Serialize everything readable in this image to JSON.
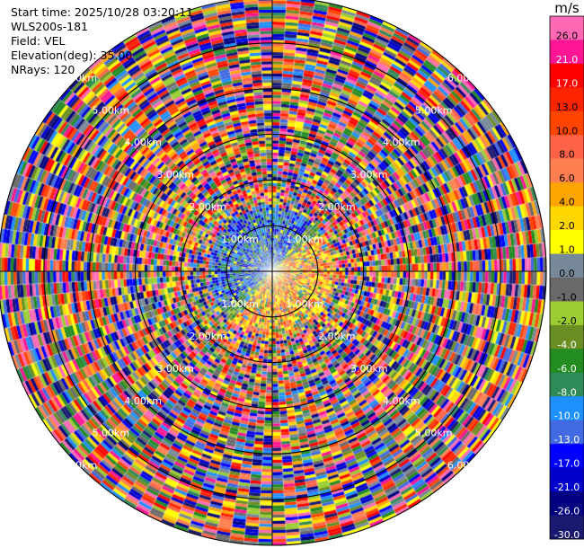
{
  "info": {
    "start_time": "Start time: 2025/10/28 03:20:11",
    "station": "WLS200s-181",
    "field": "Field: VEL",
    "elevation": "Elevation(deg): 35.00",
    "nrays": "NRays: 120"
  },
  "chart_data": {
    "type": "heatmap",
    "projection": "polar-ppi",
    "nrays": 120,
    "range_rings_km": [
      1,
      2,
      3,
      4,
      5,
      6
    ],
    "ring_labels": [
      "1.00km",
      "2.00km",
      "3.00km",
      "4.00km",
      "5.00km",
      "6.00km"
    ],
    "max_range_km": 6.0,
    "colorbar": {
      "unit": "m/s",
      "tick_labels": [
        "26.0",
        "21.0",
        "17.0",
        "13.0",
        "10.0",
        "8.0",
        "6.0",
        "4.0",
        "2.0",
        "1.0",
        "0.0",
        "-1.0",
        "-2.0",
        "-4.0",
        "-6.0",
        "-8.0",
        "-10.0",
        "-13.0",
        "-17.0",
        "-21.0",
        "-26.0",
        "-30.0"
      ],
      "colors": [
        "#ff69b4",
        "#ff1493",
        "#ff0000",
        "#ff2400",
        "#ff4500",
        "#ff6347",
        "#ff7f50",
        "#ffa500",
        "#ffd700",
        "#ffff00",
        "#778899",
        "#696969",
        "#9acd32",
        "#6b8e23",
        "#228b22",
        "#2e8b57",
        "#1e90ff",
        "#4169e1",
        "#0000ff",
        "#0000cd",
        "#000080",
        "#191970"
      ]
    },
    "legend_placement": "right",
    "grid": true
  }
}
